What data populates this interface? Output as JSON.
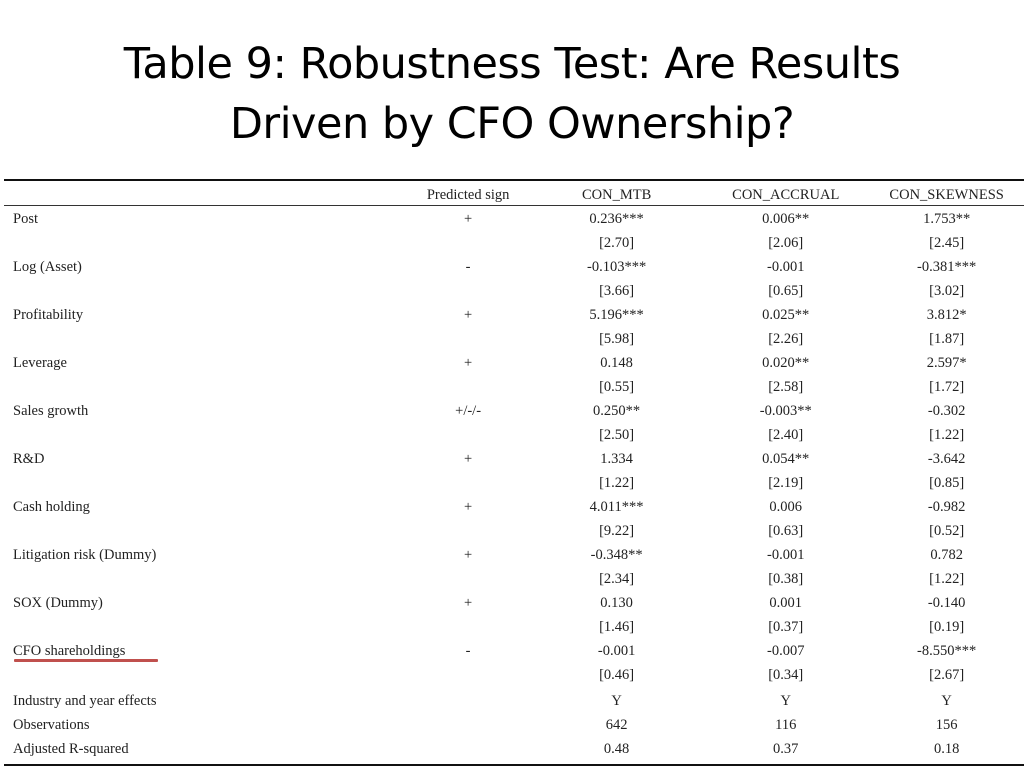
{
  "title": {
    "line1": "Table 9: Robustness Test: Are Results",
    "line2": "Driven by CFO Ownership?"
  },
  "table": {
    "columns": [
      "",
      "Predicted sign",
      "CON_MTB",
      "CON_ACCRUAL",
      "CON_SKEWNESS"
    ],
    "rows": [
      {
        "label": "Post",
        "sign": "+",
        "v": [
          "0.236***",
          "0.006**",
          "1.753**"
        ],
        "t": [
          "[2.70]",
          "[2.06]",
          "[2.45]"
        ]
      },
      {
        "label": "Log (Asset)",
        "sign": "-",
        "v": [
          "-0.103***",
          "-0.001",
          "-0.381***"
        ],
        "t": [
          "[3.66]",
          "[0.65]",
          "[3.02]"
        ]
      },
      {
        "label": "Profitability",
        "sign": "+",
        "v": [
          "5.196***",
          "0.025**",
          "3.812*"
        ],
        "t": [
          "[5.98]",
          "[2.26]",
          "[1.87]"
        ]
      },
      {
        "label": "Leverage",
        "sign": "+",
        "v": [
          "0.148",
          "0.020**",
          "2.597*"
        ],
        "t": [
          "[0.55]",
          "[2.58]",
          "[1.72]"
        ]
      },
      {
        "label": "Sales growth",
        "sign": "+/-/-",
        "v": [
          "0.250**",
          "-0.003**",
          "-0.302"
        ],
        "t": [
          "[2.50]",
          "[2.40]",
          "[1.22]"
        ]
      },
      {
        "label": "R&D",
        "sign": "+",
        "v": [
          "1.334",
          "0.054**",
          "-3.642"
        ],
        "t": [
          "[1.22]",
          "[2.19]",
          "[0.85]"
        ]
      },
      {
        "label": "Cash holding",
        "sign": "+",
        "v": [
          "4.011***",
          "0.006",
          "-0.982"
        ],
        "t": [
          "[9.22]",
          "[0.63]",
          "[0.52]"
        ]
      },
      {
        "label": "Litigation risk (Dummy)",
        "sign": "+",
        "v": [
          "-0.348**",
          "-0.001",
          "0.782"
        ],
        "t": [
          "[2.34]",
          "[0.38]",
          "[1.22]"
        ]
      },
      {
        "label": "SOX (Dummy)",
        "sign": "+",
        "v": [
          "0.130",
          "0.001",
          "-0.140"
        ],
        "t": [
          "[1.46]",
          "[0.37]",
          "[0.19]"
        ]
      },
      {
        "label": "CFO shareholdings",
        "sign": "-",
        "v": [
          "-0.001",
          "-0.007",
          "-8.550***"
        ],
        "t": [
          "[0.46]",
          "[0.34]",
          "[2.67]"
        ]
      }
    ],
    "footer": [
      {
        "label": "Industry and year effects",
        "v": [
          "Y",
          "Y",
          "Y"
        ]
      },
      {
        "label": "Observations",
        "v": [
          "642",
          "116",
          "156"
        ]
      },
      {
        "label": "Adjusted R-squared",
        "v": [
          "0.48",
          "0.37",
          "0.18"
        ]
      }
    ]
  },
  "highlight": {
    "target": "CFO shareholdings",
    "color": "#c0504d"
  }
}
